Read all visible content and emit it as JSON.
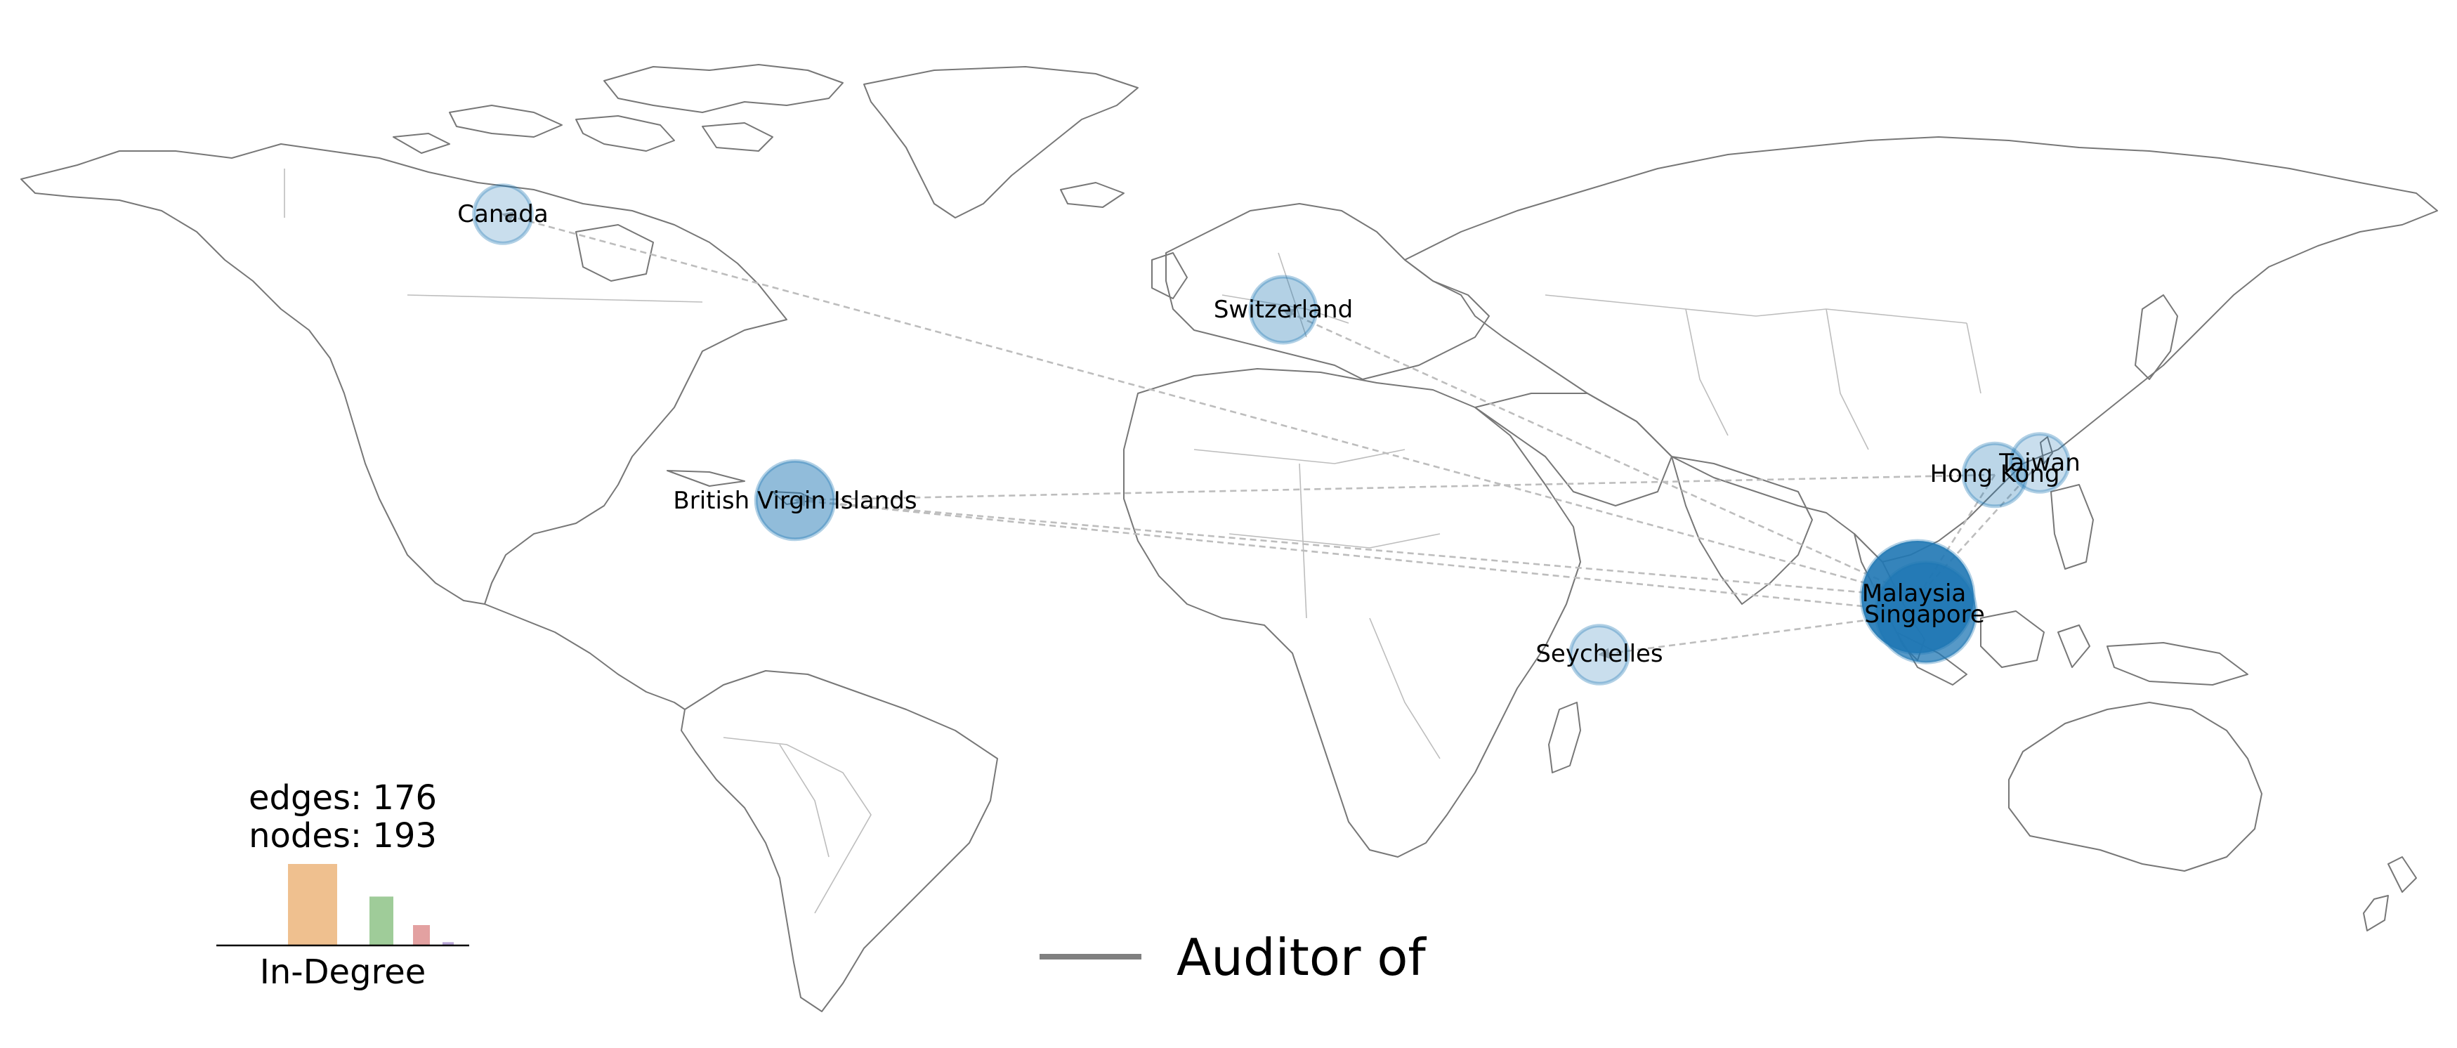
{
  "map": {
    "nodes": [
      {
        "label": "Canada",
        "level": 0.12
      },
      {
        "label": "Switzerland",
        "level": 0.25
      },
      {
        "label": "British Virgin Islands",
        "level": 0.45
      },
      {
        "label": "Hong Kong",
        "level": 0.2
      },
      {
        "label": "Taiwan",
        "level": 0.12
      },
      {
        "label": "Malaysia",
        "level": 1.0
      },
      {
        "label": "Singapore",
        "level": 0.8
      },
      {
        "label": "Seychelles",
        "level": 0.12
      }
    ],
    "edges": [
      {
        "from": "Malaysia",
        "to": "Canada"
      },
      {
        "from": "Malaysia",
        "to": "British Virgin Islands"
      },
      {
        "from": "Singapore",
        "to": "British Virgin Islands"
      },
      {
        "from": "Hong Kong",
        "to": "British Virgin Islands"
      },
      {
        "from": "Malaysia",
        "to": "Switzerland"
      },
      {
        "from": "Singapore",
        "to": "Seychelles"
      },
      {
        "from": "Taiwan",
        "to": "Malaysia"
      },
      {
        "from": "Hong Kong",
        "to": "Malaysia"
      }
    ]
  },
  "stats": {
    "edges_text": "edges: 176",
    "nodes_text": "nodes: 193"
  },
  "histogram": {
    "xlabel": "In-Degree",
    "bars": [
      {
        "value": 1.0,
        "color": "#efc08f"
      },
      {
        "value": 0.6,
        "color": "#9fcc99"
      },
      {
        "value": 0.25,
        "color": "#e3a1a1"
      },
      {
        "value": 0.04,
        "color": "#b9a7d8"
      }
    ]
  },
  "legend": {
    "label": "Auditor of",
    "line_color": "#808080"
  },
  "colors": {
    "node_dark": "#1f77b4",
    "edge": "#bdbdbd",
    "coast": "#777777"
  }
}
